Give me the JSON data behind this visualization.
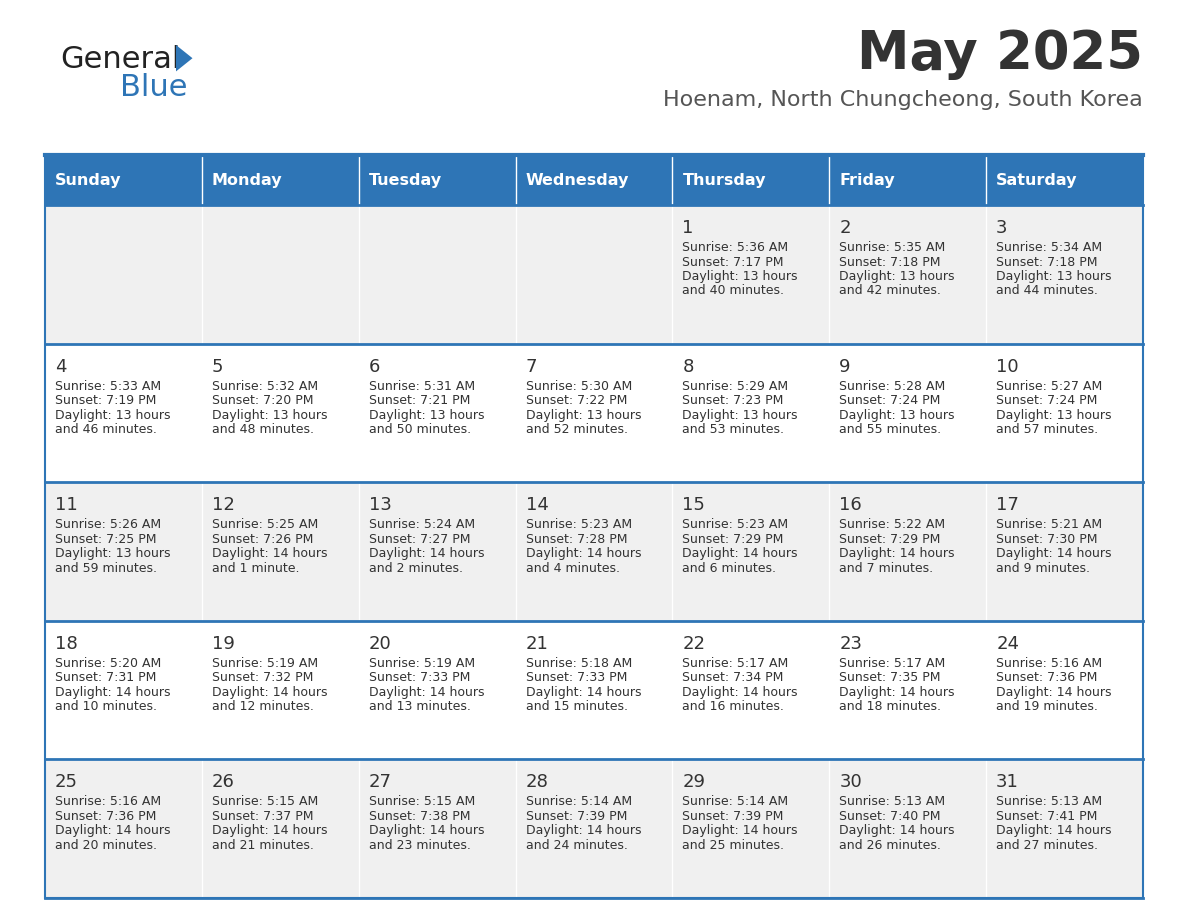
{
  "title": "May 2025",
  "subtitle": "Hoenam, North Chungcheong, South Korea",
  "days_of_week": [
    "Sunday",
    "Monday",
    "Tuesday",
    "Wednesday",
    "Thursday",
    "Friday",
    "Saturday"
  ],
  "header_bg": "#2E75B6",
  "header_text": "#FFFFFF",
  "row_bg_odd": "#F0F0F0",
  "row_bg_even": "#FFFFFF",
  "cell_text_color": "#333333",
  "day_number_color": "#333333",
  "divider_color": "#2E75B6",
  "title_color": "#333333",
  "subtitle_color": "#555555",
  "logo_black": "#222222",
  "logo_blue": "#2E75B6",
  "calendar_data": [
    {
      "day": 1,
      "col": 4,
      "row": 0,
      "sunrise": "5:36 AM",
      "sunset": "7:17 PM",
      "daylight_line1": "Daylight: 13 hours",
      "daylight_line2": "and 40 minutes."
    },
    {
      "day": 2,
      "col": 5,
      "row": 0,
      "sunrise": "5:35 AM",
      "sunset": "7:18 PM",
      "daylight_line1": "Daylight: 13 hours",
      "daylight_line2": "and 42 minutes."
    },
    {
      "day": 3,
      "col": 6,
      "row": 0,
      "sunrise": "5:34 AM",
      "sunset": "7:18 PM",
      "daylight_line1": "Daylight: 13 hours",
      "daylight_line2": "and 44 minutes."
    },
    {
      "day": 4,
      "col": 0,
      "row": 1,
      "sunrise": "5:33 AM",
      "sunset": "7:19 PM",
      "daylight_line1": "Daylight: 13 hours",
      "daylight_line2": "and 46 minutes."
    },
    {
      "day": 5,
      "col": 1,
      "row": 1,
      "sunrise": "5:32 AM",
      "sunset": "7:20 PM",
      "daylight_line1": "Daylight: 13 hours",
      "daylight_line2": "and 48 minutes."
    },
    {
      "day": 6,
      "col": 2,
      "row": 1,
      "sunrise": "5:31 AM",
      "sunset": "7:21 PM",
      "daylight_line1": "Daylight: 13 hours",
      "daylight_line2": "and 50 minutes."
    },
    {
      "day": 7,
      "col": 3,
      "row": 1,
      "sunrise": "5:30 AM",
      "sunset": "7:22 PM",
      "daylight_line1": "Daylight: 13 hours",
      "daylight_line2": "and 52 minutes."
    },
    {
      "day": 8,
      "col": 4,
      "row": 1,
      "sunrise": "5:29 AM",
      "sunset": "7:23 PM",
      "daylight_line1": "Daylight: 13 hours",
      "daylight_line2": "and 53 minutes."
    },
    {
      "day": 9,
      "col": 5,
      "row": 1,
      "sunrise": "5:28 AM",
      "sunset": "7:24 PM",
      "daylight_line1": "Daylight: 13 hours",
      "daylight_line2": "and 55 minutes."
    },
    {
      "day": 10,
      "col": 6,
      "row": 1,
      "sunrise": "5:27 AM",
      "sunset": "7:24 PM",
      "daylight_line1": "Daylight: 13 hours",
      "daylight_line2": "and 57 minutes."
    },
    {
      "day": 11,
      "col": 0,
      "row": 2,
      "sunrise": "5:26 AM",
      "sunset": "7:25 PM",
      "daylight_line1": "Daylight: 13 hours",
      "daylight_line2": "and 59 minutes."
    },
    {
      "day": 12,
      "col": 1,
      "row": 2,
      "sunrise": "5:25 AM",
      "sunset": "7:26 PM",
      "daylight_line1": "Daylight: 14 hours",
      "daylight_line2": "and 1 minute."
    },
    {
      "day": 13,
      "col": 2,
      "row": 2,
      "sunrise": "5:24 AM",
      "sunset": "7:27 PM",
      "daylight_line1": "Daylight: 14 hours",
      "daylight_line2": "and 2 minutes."
    },
    {
      "day": 14,
      "col": 3,
      "row": 2,
      "sunrise": "5:23 AM",
      "sunset": "7:28 PM",
      "daylight_line1": "Daylight: 14 hours",
      "daylight_line2": "and 4 minutes."
    },
    {
      "day": 15,
      "col": 4,
      "row": 2,
      "sunrise": "5:23 AM",
      "sunset": "7:29 PM",
      "daylight_line1": "Daylight: 14 hours",
      "daylight_line2": "and 6 minutes."
    },
    {
      "day": 16,
      "col": 5,
      "row": 2,
      "sunrise": "5:22 AM",
      "sunset": "7:29 PM",
      "daylight_line1": "Daylight: 14 hours",
      "daylight_line2": "and 7 minutes."
    },
    {
      "day": 17,
      "col": 6,
      "row": 2,
      "sunrise": "5:21 AM",
      "sunset": "7:30 PM",
      "daylight_line1": "Daylight: 14 hours",
      "daylight_line2": "and 9 minutes."
    },
    {
      "day": 18,
      "col": 0,
      "row": 3,
      "sunrise": "5:20 AM",
      "sunset": "7:31 PM",
      "daylight_line1": "Daylight: 14 hours",
      "daylight_line2": "and 10 minutes."
    },
    {
      "day": 19,
      "col": 1,
      "row": 3,
      "sunrise": "5:19 AM",
      "sunset": "7:32 PM",
      "daylight_line1": "Daylight: 14 hours",
      "daylight_line2": "and 12 minutes."
    },
    {
      "day": 20,
      "col": 2,
      "row": 3,
      "sunrise": "5:19 AM",
      "sunset": "7:33 PM",
      "daylight_line1": "Daylight: 14 hours",
      "daylight_line2": "and 13 minutes."
    },
    {
      "day": 21,
      "col": 3,
      "row": 3,
      "sunrise": "5:18 AM",
      "sunset": "7:33 PM",
      "daylight_line1": "Daylight: 14 hours",
      "daylight_line2": "and 15 minutes."
    },
    {
      "day": 22,
      "col": 4,
      "row": 3,
      "sunrise": "5:17 AM",
      "sunset": "7:34 PM",
      "daylight_line1": "Daylight: 14 hours",
      "daylight_line2": "and 16 minutes."
    },
    {
      "day": 23,
      "col": 5,
      "row": 3,
      "sunrise": "5:17 AM",
      "sunset": "7:35 PM",
      "daylight_line1": "Daylight: 14 hours",
      "daylight_line2": "and 18 minutes."
    },
    {
      "day": 24,
      "col": 6,
      "row": 3,
      "sunrise": "5:16 AM",
      "sunset": "7:36 PM",
      "daylight_line1": "Daylight: 14 hours",
      "daylight_line2": "and 19 minutes."
    },
    {
      "day": 25,
      "col": 0,
      "row": 4,
      "sunrise": "5:16 AM",
      "sunset": "7:36 PM",
      "daylight_line1": "Daylight: 14 hours",
      "daylight_line2": "and 20 minutes."
    },
    {
      "day": 26,
      "col": 1,
      "row": 4,
      "sunrise": "5:15 AM",
      "sunset": "7:37 PM",
      "daylight_line1": "Daylight: 14 hours",
      "daylight_line2": "and 21 minutes."
    },
    {
      "day": 27,
      "col": 2,
      "row": 4,
      "sunrise": "5:15 AM",
      "sunset": "7:38 PM",
      "daylight_line1": "Daylight: 14 hours",
      "daylight_line2": "and 23 minutes."
    },
    {
      "day": 28,
      "col": 3,
      "row": 4,
      "sunrise": "5:14 AM",
      "sunset": "7:39 PM",
      "daylight_line1": "Daylight: 14 hours",
      "daylight_line2": "and 24 minutes."
    },
    {
      "day": 29,
      "col": 4,
      "row": 4,
      "sunrise": "5:14 AM",
      "sunset": "7:39 PM",
      "daylight_line1": "Daylight: 14 hours",
      "daylight_line2": "and 25 minutes."
    },
    {
      "day": 30,
      "col": 5,
      "row": 4,
      "sunrise": "5:13 AM",
      "sunset": "7:40 PM",
      "daylight_line1": "Daylight: 14 hours",
      "daylight_line2": "and 26 minutes."
    },
    {
      "day": 31,
      "col": 6,
      "row": 4,
      "sunrise": "5:13 AM",
      "sunset": "7:41 PM",
      "daylight_line1": "Daylight: 14 hours",
      "daylight_line2": "and 27 minutes."
    }
  ]
}
